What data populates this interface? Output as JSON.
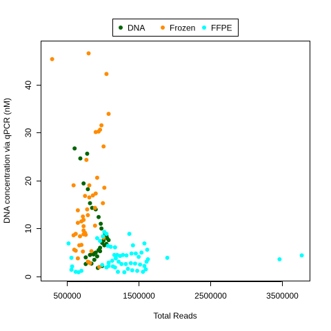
{
  "chart_data": {
    "type": "scatter",
    "title": "",
    "xlabel": "Total Reads",
    "ylabel": "DNA concentration via qPCR (nM)",
    "xlim": [
      140000,
      3900000
    ],
    "ylim": [
      -1,
      49
    ],
    "x_ticks": [
      500000,
      1500000,
      2500000,
      3500000
    ],
    "x_tick_labels": [
      "500000",
      "1500000",
      "2500000",
      "3500000"
    ],
    "y_ticks": [
      0,
      10,
      20,
      30,
      40
    ],
    "y_tick_labels": [
      "0",
      "10",
      "20",
      "30",
      "40"
    ],
    "grid": false,
    "legend_position": "top-center",
    "series": [
      {
        "name": "DNA",
        "color": "#006400",
        "points": [
          [
            605000,
            26.7
          ],
          [
            685000,
            24.6
          ],
          [
            780000,
            25.6
          ],
          [
            730000,
            19.4
          ],
          [
            790000,
            18.2
          ],
          [
            820000,
            15.3
          ],
          [
            850000,
            14.3
          ],
          [
            900000,
            14.0
          ],
          [
            940000,
            12.4
          ],
          [
            970000,
            11.0
          ],
          [
            980000,
            10.0
          ],
          [
            1030000,
            9.0
          ],
          [
            1050000,
            8.5
          ],
          [
            1060000,
            8.0
          ],
          [
            1010000,
            7.5
          ],
          [
            990000,
            7.0
          ],
          [
            1020000,
            6.5
          ],
          [
            960000,
            6.0
          ],
          [
            940000,
            5.5
          ],
          [
            900000,
            5.0
          ],
          [
            860000,
            4.8
          ],
          [
            820000,
            4.5
          ],
          [
            920000,
            4.2
          ],
          [
            760000,
            4.0
          ],
          [
            880000,
            3.5
          ],
          [
            800000,
            3.0
          ],
          [
            760000,
            2.6
          ],
          [
            840000,
            2.7
          ],
          [
            990000,
            2.2
          ],
          [
            930000,
            1.8
          ],
          [
            1050000,
            6.8
          ],
          [
            1080000,
            7.6
          ],
          [
            960000,
            5.3
          ],
          [
            870000,
            4.6
          ]
        ]
      },
      {
        "name": "Frozen",
        "color": "#FF8C00",
        "points": [
          [
            290000,
            45.3
          ],
          [
            800000,
            46.5
          ],
          [
            1050000,
            42.2
          ],
          [
            1080000,
            33.9
          ],
          [
            980000,
            31.5
          ],
          [
            960000,
            30.6
          ],
          [
            940000,
            30.2
          ],
          [
            900000,
            30.1
          ],
          [
            1010000,
            27.1
          ],
          [
            770000,
            24.3
          ],
          [
            920000,
            20.6
          ],
          [
            590000,
            19.0
          ],
          [
            810000,
            19.0
          ],
          [
            1020000,
            18.5
          ],
          [
            900000,
            17.3
          ],
          [
            860000,
            16.9
          ],
          [
            750000,
            16.8
          ],
          [
            810000,
            16.5
          ],
          [
            1000000,
            15.3
          ],
          [
            780000,
            14.0
          ],
          [
            890000,
            14.3
          ],
          [
            650000,
            13.8
          ],
          [
            790000,
            12.8
          ],
          [
            720000,
            12.5
          ],
          [
            730000,
            11.8
          ],
          [
            700000,
            11.5
          ],
          [
            650000,
            11.2
          ],
          [
            890000,
            10.6
          ],
          [
            730000,
            10.5
          ],
          [
            730000,
            9.6
          ],
          [
            750000,
            9.1
          ],
          [
            730000,
            8.8
          ],
          [
            620000,
            8.9
          ],
          [
            760000,
            8.7
          ],
          [
            590000,
            8.6
          ],
          [
            680000,
            8.4
          ],
          [
            1010000,
            8.1
          ],
          [
            700000,
            6.6
          ],
          [
            670000,
            6.5
          ],
          [
            600000,
            5.6
          ],
          [
            620000,
            5.4
          ],
          [
            840000,
            5.3
          ],
          [
            720000,
            5.2
          ],
          [
            650000,
            3.8
          ],
          [
            790000,
            3.1
          ],
          [
            820000,
            2.8
          ],
          [
            950000,
            2.0
          ]
        ]
      },
      {
        "name": "FFPE",
        "color": "#00FFFF",
        "points": [
          [
            3780000,
            4.4
          ],
          [
            3470000,
            3.6
          ],
          [
            1900000,
            3.9
          ],
          [
            1370000,
            8.9
          ],
          [
            1420000,
            6.5
          ],
          [
            1580000,
            6.9
          ],
          [
            1620000,
            5.6
          ],
          [
            1540000,
            5.0
          ],
          [
            1500000,
            4.1
          ],
          [
            1460000,
            4.8
          ],
          [
            1400000,
            4.8
          ],
          [
            1330000,
            4.4
          ],
          [
            1280000,
            4.5
          ],
          [
            1240000,
            4.3
          ],
          [
            1200000,
            4.5
          ],
          [
            1160000,
            4.5
          ],
          [
            1180000,
            3.8
          ],
          [
            1220000,
            3.1
          ],
          [
            1130000,
            3.3
          ],
          [
            1080000,
            2.9
          ],
          [
            1260000,
            2.6
          ],
          [
            1320000,
            2.6
          ],
          [
            1390000,
            2.8
          ],
          [
            1450000,
            2.7
          ],
          [
            1520000,
            2.5
          ],
          [
            1580000,
            2.2
          ],
          [
            1610000,
            3.1
          ],
          [
            1630000,
            3.6
          ],
          [
            1170000,
            1.9
          ],
          [
            1210000,
            1.0
          ],
          [
            1300000,
            0.9
          ],
          [
            1410000,
            1.3
          ],
          [
            1480000,
            1.2
          ],
          [
            1560000,
            1.0
          ],
          [
            1600000,
            1.5
          ],
          [
            1350000,
            1.6
          ],
          [
            1170000,
            6.1
          ],
          [
            1110000,
            6.2
          ],
          [
            1070000,
            6.4
          ],
          [
            960000,
            7.4
          ],
          [
            920000,
            8.0
          ],
          [
            1000000,
            8.4
          ],
          [
            1020000,
            9.3
          ],
          [
            1050000,
            8.9
          ],
          [
            520000,
            6.9
          ],
          [
            560000,
            3.9
          ],
          [
            570000,
            2.1
          ],
          [
            560000,
            1.4
          ],
          [
            620000,
            1.0
          ],
          [
            660000,
            0.9
          ],
          [
            700000,
            1.2
          ],
          [
            1050000,
            1.9
          ],
          [
            1080000,
            2.2
          ],
          [
            1140000,
            2.1
          ],
          [
            990000,
            2.4
          ]
        ]
      }
    ]
  }
}
